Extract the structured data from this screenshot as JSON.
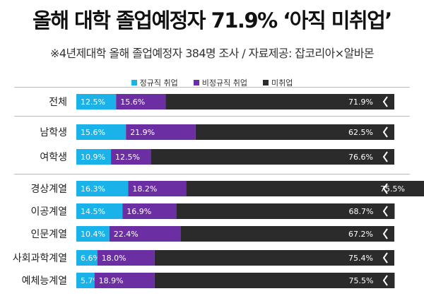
{
  "title": "올해 대학 졸업예정자  71.9% ‘아직 미취업’",
  "subtitle": "※4년제대학 올해 졸업예정자 384명 조사 / 자료제공: 잡코리아×알바몬",
  "colors": {
    "regular": "#1ab2e8",
    "irregular": "#6b2fa3",
    "unemployed": "#2b2b2b",
    "divider": "#bbbbbb"
  },
  "chart_data": {
    "type": "bar",
    "orientation": "horizontal",
    "stacked": true,
    "unit": "%",
    "categories": [
      "전체",
      "남학생",
      "여학생",
      "경상계열",
      "이공계열",
      "인문계열",
      "사회과학계열",
      "예체능계열"
    ],
    "series": [
      {
        "name": "정규직 취업",
        "values": [
          12.5,
          15.6,
          10.9,
          16.3,
          14.5,
          10.4,
          6.6,
          5.7
        ],
        "labels": [
          "12.5%",
          "15.6%",
          "10.9%",
          "16.3%",
          "14.5%",
          "10.4%",
          "6.6%",
          "5.7%"
        ]
      },
      {
        "name": "비정규직 취업",
        "values": [
          15.6,
          21.9,
          12.5,
          18.2,
          16.9,
          22.4,
          18.0,
          18.9
        ],
        "labels": [
          "15.6%",
          "21.9%",
          "12.5%",
          "18.2%",
          "16.9%",
          "22.4%",
          "18.0%",
          "18.9%"
        ]
      },
      {
        "name": "미취업",
        "values": [
          71.9,
          62.5,
          76.6,
          75.5,
          68.7,
          67.2,
          75.4,
          75.5
        ],
        "labels": [
          "71.9%",
          "62.5%",
          "76.6%",
          "75.5%",
          "68.7%",
          "67.2%",
          "75.4%",
          "75.5%"
        ]
      }
    ],
    "legend_position": "top-center"
  }
}
